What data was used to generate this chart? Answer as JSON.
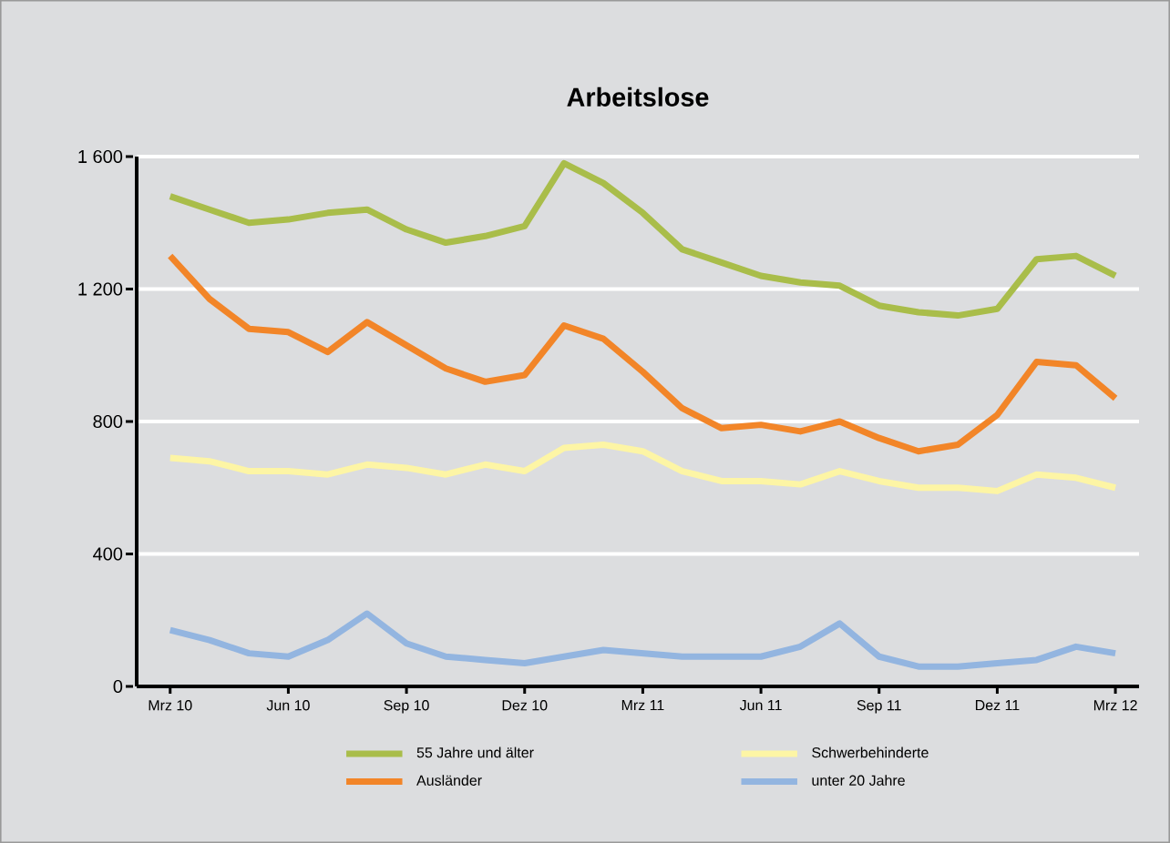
{
  "chart_data": {
    "type": "line",
    "title": "Arbeitslose",
    "categories": [
      "Mrz 10",
      null,
      null,
      "Jun 10",
      null,
      null,
      "Sep 10",
      null,
      null,
      "Dez 10",
      null,
      null,
      "Mrz 11",
      null,
      null,
      "Jun 11",
      null,
      null,
      "Sep 11",
      null,
      null,
      "Dez 11",
      null,
      null,
      "Mrz 12"
    ],
    "ylim": [
      0,
      1600
    ],
    "yticks": [
      0,
      400,
      800,
      {
        "value": 1200,
        "label": "1 200"
      },
      {
        "value": 1600,
        "label": "1 600"
      }
    ],
    "grid": "y",
    "legend": "bottom",
    "marker": "none",
    "line_style": "solid",
    "series": [
      {
        "name": "55 Jahre und älter",
        "color": "#a9bd4a",
        "values": [
          1480,
          1440,
          1400,
          1410,
          1430,
          1440,
          1380,
          1340,
          1360,
          1390,
          1580,
          1520,
          1430,
          1320,
          1280,
          1240,
          1220,
          1210,
          1150,
          1130,
          1120,
          1140,
          1290,
          1300,
          1240
        ]
      },
      {
        "name": "Schwerbehinderte",
        "color": "#fdf5a5",
        "values": [
          690,
          680,
          650,
          650,
          640,
          670,
          660,
          640,
          670,
          650,
          720,
          730,
          710,
          650,
          620,
          620,
          610,
          650,
          620,
          600,
          600,
          590,
          640,
          630,
          600
        ]
      },
      {
        "name": "Ausländer",
        "color": "#f28528",
        "values": [
          1300,
          1170,
          1080,
          1070,
          1010,
          1100,
          1030,
          960,
          920,
          940,
          1090,
          1050,
          950,
          840,
          780,
          790,
          770,
          800,
          750,
          710,
          730,
          820,
          980,
          970,
          870
        ]
      },
      {
        "name": "unter 20 Jahre",
        "color": "#93b5e0",
        "values": [
          170,
          140,
          100,
          90,
          140,
          220,
          130,
          90,
          80,
          70,
          90,
          110,
          100,
          90,
          90,
          90,
          120,
          190,
          90,
          60,
          60,
          70,
          80,
          120,
          100
        ]
      }
    ]
  }
}
